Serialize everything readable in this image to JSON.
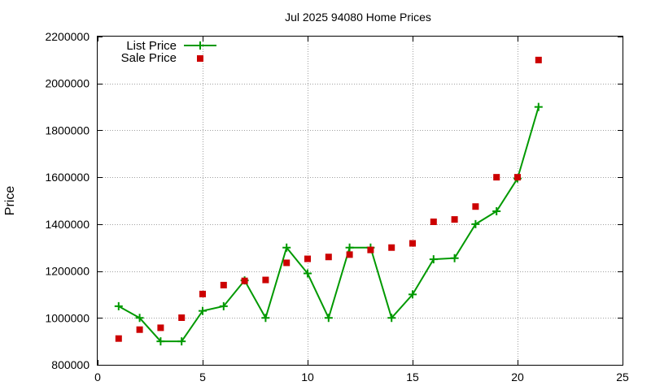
{
  "chart_data": {
    "type": "line",
    "title": "Jul 2025 94080 Home Prices",
    "xlabel": "",
    "ylabel": "Price",
    "xlim": [
      0,
      25
    ],
    "ylim": [
      800000,
      2200000
    ],
    "xticks": [
      0,
      5,
      10,
      15,
      20,
      25
    ],
    "yticks": [
      800000,
      1000000,
      1200000,
      1400000,
      1600000,
      1800000,
      2000000,
      2200000
    ],
    "grid": true,
    "legend_position": "top-left",
    "series": [
      {
        "name": "List Price",
        "style": "line+cross",
        "color": "#009900",
        "x": [
          1,
          2,
          3,
          4,
          5,
          6,
          7,
          8,
          9,
          10,
          11,
          12,
          13,
          14,
          15,
          16,
          17,
          18,
          19,
          20,
          21
        ],
        "values": [
          1050000,
          1000000,
          900000,
          900000,
          1030000,
          1050000,
          1160000,
          1000000,
          1300000,
          1190000,
          1000000,
          1300000,
          1300000,
          1000000,
          1100000,
          1250000,
          1255000,
          1400000,
          1455000,
          1595000,
          1900000
        ]
      },
      {
        "name": "Sale Price",
        "style": "square",
        "color": "#cc0000",
        "x": [
          1,
          2,
          3,
          4,
          5,
          6,
          7,
          8,
          9,
          10,
          11,
          12,
          13,
          14,
          15,
          16,
          17,
          18,
          19,
          20,
          21
        ],
        "values": [
          912000,
          950000,
          958000,
          1001000,
          1102000,
          1140000,
          1158000,
          1162000,
          1235000,
          1252000,
          1260000,
          1270000,
          1290000,
          1300000,
          1318000,
          1410000,
          1420000,
          1475000,
          1600000,
          1600000,
          2100000
        ]
      }
    ]
  }
}
